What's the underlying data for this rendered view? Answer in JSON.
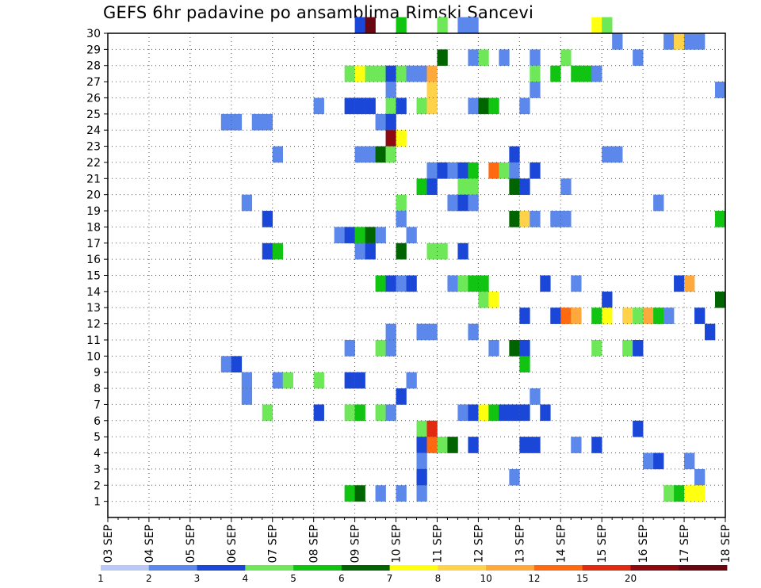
{
  "chart_data": {
    "type": "heatmap",
    "title": "GEFS 6hr padavine po ansamblima Rimski Sancevi",
    "x_tick_labels": [
      "03 SEP",
      "04 SEP",
      "05 SEP",
      "06 SEP",
      "07 SEP",
      "08 SEP",
      "09 SEP",
      "10 SEP",
      "11 SEP",
      "12 SEP",
      "13 SEP",
      "14 SEP",
      "15 SEP",
      "16 SEP",
      "17 SEP",
      "18 SEP"
    ],
    "y_tick_labels": [
      "1",
      "2",
      "3",
      "4",
      "5",
      "6",
      "7",
      "8",
      "9",
      "10",
      "11",
      "12",
      "13",
      "14",
      "15",
      "16",
      "17",
      "18",
      "19",
      "20",
      "21",
      "22",
      "23",
      "24",
      "25",
      "26",
      "27",
      "28",
      "29",
      "30"
    ],
    "x_axis": "time in 6-hour steps from 03 SEP 00z (step 0) to 18 SEP 00z (step 60)",
    "y_axis": "ensemble member (row 0 = bottom row below member 1)",
    "xlim": [
      0,
      60
    ],
    "ylim": [
      0,
      30
    ],
    "grid": true,
    "colorbar": {
      "labels": [
        "1",
        "2",
        "3",
        "4",
        "5",
        "6",
        "7",
        "8",
        "10",
        "12",
        "15",
        "20"
      ],
      "colors": [
        "#b9c8f5",
        "#5c87eb",
        "#1a47d8",
        "#6ee858",
        "#12c412",
        "#006400",
        "#ffff10",
        "#ffd24a",
        "#ffa83c",
        "#ff6a10",
        "#e22a10",
        "#8c0a10",
        "#6a0610"
      ]
    },
    "cells": [
      [
        24,
        30,
        2
      ],
      [
        25,
        30,
        12
      ],
      [
        28,
        30,
        4
      ],
      [
        32,
        30,
        3
      ],
      [
        34,
        30,
        1
      ],
      [
        35,
        30,
        1
      ],
      [
        47,
        30,
        6
      ],
      [
        48,
        30,
        3
      ],
      [
        49,
        29,
        1
      ],
      [
        54,
        29,
        1
      ],
      [
        55,
        29,
        7
      ],
      [
        56,
        29,
        1
      ],
      [
        57,
        29,
        1
      ],
      [
        32,
        28,
        5
      ],
      [
        35,
        28,
        1
      ],
      [
        36,
        28,
        3
      ],
      [
        38,
        28,
        1
      ],
      [
        41,
        28,
        1
      ],
      [
        44,
        28,
        3
      ],
      [
        51,
        28,
        1
      ],
      [
        23,
        27,
        3
      ],
      [
        24,
        27,
        6
      ],
      [
        25,
        27,
        3
      ],
      [
        26,
        27,
        3
      ],
      [
        27,
        27,
        2
      ],
      [
        28,
        27,
        3
      ],
      [
        29,
        27,
        1
      ],
      [
        30,
        27,
        1
      ],
      [
        31,
        27,
        8
      ],
      [
        41,
        27,
        3
      ],
      [
        43,
        27,
        4
      ],
      [
        45,
        27,
        4
      ],
      [
        46,
        27,
        4
      ],
      [
        47,
        27,
        1
      ],
      [
        27,
        26,
        1
      ],
      [
        31,
        26,
        7
      ],
      [
        41,
        26,
        1
      ],
      [
        59,
        26,
        1
      ],
      [
        20,
        25,
        1
      ],
      [
        23,
        25,
        2
      ],
      [
        24,
        25,
        2
      ],
      [
        25,
        25,
        2
      ],
      [
        27,
        25,
        3
      ],
      [
        28,
        25,
        2
      ],
      [
        30,
        25,
        3
      ],
      [
        31,
        25,
        7
      ],
      [
        35,
        25,
        1
      ],
      [
        36,
        25,
        5
      ],
      [
        37,
        25,
        4
      ],
      [
        40,
        25,
        1
      ],
      [
        11,
        24,
        1
      ],
      [
        12,
        24,
        1
      ],
      [
        14,
        24,
        1
      ],
      [
        15,
        24,
        1
      ],
      [
        26,
        24,
        1
      ],
      [
        27,
        24,
        2
      ],
      [
        27,
        23,
        11
      ],
      [
        28,
        23,
        6
      ],
      [
        16,
        22,
        1
      ],
      [
        24,
        22,
        1
      ],
      [
        25,
        22,
        1
      ],
      [
        26,
        22,
        5
      ],
      [
        27,
        22,
        3
      ],
      [
        39,
        22,
        2
      ],
      [
        48,
        22,
        1
      ],
      [
        49,
        22,
        1
      ],
      [
        31,
        21,
        1
      ],
      [
        32,
        21,
        2
      ],
      [
        33,
        21,
        1
      ],
      [
        34,
        21,
        2
      ],
      [
        35,
        21,
        4
      ],
      [
        37,
        21,
        9
      ],
      [
        38,
        21,
        3
      ],
      [
        39,
        21,
        1
      ],
      [
        41,
        21,
        2
      ],
      [
        30,
        20,
        4
      ],
      [
        31,
        20,
        2
      ],
      [
        34,
        20,
        3
      ],
      [
        35,
        20,
        3
      ],
      [
        39,
        20,
        5
      ],
      [
        40,
        20,
        2
      ],
      [
        44,
        20,
        1
      ],
      [
        13,
        19,
        1
      ],
      [
        28,
        19,
        3
      ],
      [
        33,
        19,
        1
      ],
      [
        34,
        19,
        2
      ],
      [
        35,
        19,
        1
      ],
      [
        53,
        19,
        1
      ],
      [
        15,
        18,
        2
      ],
      [
        28,
        18,
        1
      ],
      [
        39,
        18,
        5
      ],
      [
        40,
        18,
        7
      ],
      [
        41,
        18,
        1
      ],
      [
        43,
        18,
        1
      ],
      [
        44,
        18,
        1
      ],
      [
        59,
        18,
        4
      ],
      [
        22,
        17,
        1
      ],
      [
        23,
        17,
        2
      ],
      [
        24,
        17,
        4
      ],
      [
        25,
        17,
        5
      ],
      [
        26,
        17,
        1
      ],
      [
        29,
        17,
        1
      ],
      [
        15,
        16,
        2
      ],
      [
        16,
        16,
        4
      ],
      [
        24,
        16,
        1
      ],
      [
        25,
        16,
        2
      ],
      [
        28,
        16,
        5
      ],
      [
        31,
        16,
        3
      ],
      [
        32,
        16,
        3
      ],
      [
        34,
        16,
        2
      ],
      [
        26,
        14,
        4
      ],
      [
        27,
        14,
        2
      ],
      [
        28,
        14,
        1
      ],
      [
        29,
        14,
        2
      ],
      [
        33,
        14,
        1
      ],
      [
        34,
        14,
        3
      ],
      [
        35,
        14,
        4
      ],
      [
        36,
        14,
        4
      ],
      [
        42,
        14,
        2
      ],
      [
        45,
        14,
        1
      ],
      [
        55,
        14,
        2
      ],
      [
        56,
        14,
        8
      ],
      [
        36,
        13,
        3
      ],
      [
        37,
        13,
        6
      ],
      [
        48,
        13,
        2
      ],
      [
        59,
        13,
        5
      ],
      [
        40,
        12,
        2
      ],
      [
        43,
        12,
        2
      ],
      [
        44,
        12,
        9
      ],
      [
        45,
        12,
        8
      ],
      [
        47,
        12,
        4
      ],
      [
        48,
        12,
        6
      ],
      [
        50,
        12,
        7
      ],
      [
        51,
        12,
        3
      ],
      [
        52,
        12,
        8
      ],
      [
        53,
        12,
        4
      ],
      [
        54,
        12,
        1
      ],
      [
        57,
        12,
        2
      ],
      [
        27,
        11,
        1
      ],
      [
        30,
        11,
        1
      ],
      [
        31,
        11,
        1
      ],
      [
        35,
        11,
        1
      ],
      [
        58,
        11,
        2
      ],
      [
        23,
        10,
        1
      ],
      [
        26,
        10,
        3
      ],
      [
        27,
        10,
        1
      ],
      [
        37,
        10,
        1
      ],
      [
        39,
        10,
        5
      ],
      [
        40,
        10,
        2
      ],
      [
        47,
        10,
        3
      ],
      [
        50,
        10,
        3
      ],
      [
        51,
        10,
        2
      ],
      [
        11,
        9,
        1
      ],
      [
        12,
        9,
        2
      ],
      [
        40,
        9,
        4
      ],
      [
        13,
        8,
        1
      ],
      [
        16,
        8,
        1
      ],
      [
        17,
        8,
        3
      ],
      [
        20,
        8,
        3
      ],
      [
        23,
        8,
        2
      ],
      [
        24,
        8,
        2
      ],
      [
        29,
        8,
        1
      ],
      [
        13,
        7,
        1
      ],
      [
        28,
        7,
        2
      ],
      [
        41,
        7,
        1
      ],
      [
        15,
        6,
        3
      ],
      [
        20,
        6,
        2
      ],
      [
        23,
        6,
        3
      ],
      [
        24,
        6,
        4
      ],
      [
        26,
        6,
        3
      ],
      [
        27,
        6,
        1
      ],
      [
        34,
        6,
        1
      ],
      [
        35,
        6,
        2
      ],
      [
        36,
        6,
        6
      ],
      [
        37,
        6,
        4
      ],
      [
        38,
        6,
        2
      ],
      [
        39,
        6,
        2
      ],
      [
        40,
        6,
        2
      ],
      [
        42,
        6,
        2
      ],
      [
        30,
        5,
        3
      ],
      [
        31,
        5,
        10
      ],
      [
        51,
        5,
        2
      ],
      [
        30,
        4,
        2
      ],
      [
        31,
        4,
        9
      ],
      [
        32,
        4,
        3
      ],
      [
        33,
        4,
        5
      ],
      [
        35,
        4,
        2
      ],
      [
        40,
        4,
        2
      ],
      [
        41,
        4,
        2
      ],
      [
        45,
        4,
        1
      ],
      [
        47,
        4,
        2
      ],
      [
        30,
        3,
        1
      ],
      [
        52,
        3,
        1
      ],
      [
        53,
        3,
        2
      ],
      [
        56,
        3,
        1
      ],
      [
        30,
        2,
        2
      ],
      [
        39,
        2,
        1
      ],
      [
        57,
        2,
        1
      ],
      [
        23,
        1,
        4
      ],
      [
        24,
        1,
        5
      ],
      [
        26,
        1,
        1
      ],
      [
        28,
        1,
        1
      ],
      [
        30,
        1,
        1
      ],
      [
        54,
        1,
        3
      ],
      [
        55,
        1,
        4
      ],
      [
        56,
        1,
        6
      ],
      [
        57,
        1,
        6
      ]
    ]
  }
}
